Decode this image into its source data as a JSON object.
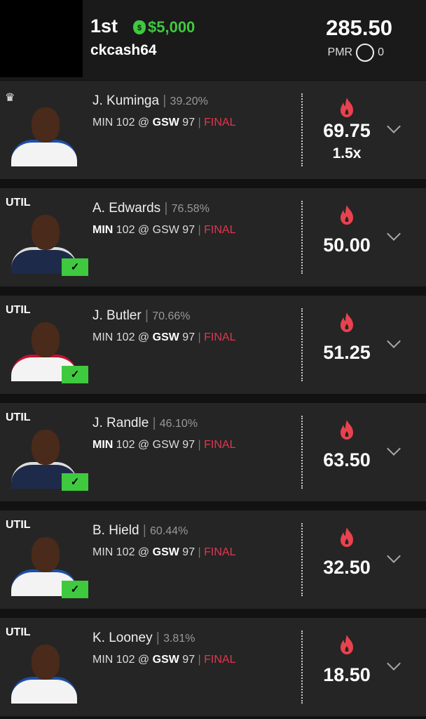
{
  "header": {
    "rank": "1st",
    "prize": "$5,000",
    "username": "ckcash64",
    "total": "285.50",
    "pmr_label": "PMR",
    "pmr_value": "0"
  },
  "colors": {
    "prize": "#3fc93f",
    "final": "#e0364e",
    "check": "#3fc93f"
  },
  "players": [
    {
      "slot": "crown",
      "name": "J. Kuminga",
      "pct": "39.20%",
      "away": "MIN",
      "away_score": "102",
      "home": "GSW",
      "home_score": "97",
      "bold": "home",
      "status": "FINAL",
      "score": "69.75",
      "mult": "1.5x",
      "checked": false,
      "jersey": "#f3f3f3",
      "trim": "#1d4fa8"
    },
    {
      "slot": "UTIL",
      "name": "A. Edwards",
      "pct": "76.58%",
      "away": "MIN",
      "away_score": "102",
      "home": "GSW",
      "home_score": "97",
      "bold": "away",
      "status": "FINAL",
      "score": "50.00",
      "checked": true,
      "jersey": "#1e2a4a",
      "trim": "#ddd"
    },
    {
      "slot": "UTIL",
      "name": "J. Butler",
      "pct": "70.66%",
      "away": "MIN",
      "away_score": "102",
      "home": "GSW",
      "home_score": "97",
      "bold": "home",
      "status": "FINAL",
      "score": "51.25",
      "checked": true,
      "jersey": "#f3f3f3",
      "trim": "#c8102e"
    },
    {
      "slot": "UTIL",
      "name": "J. Randle",
      "pct": "46.10%",
      "away": "MIN",
      "away_score": "102",
      "home": "GSW",
      "home_score": "97",
      "bold": "away",
      "status": "FINAL",
      "score": "63.50",
      "checked": true,
      "jersey": "#1e2a4a",
      "trim": "#ddd"
    },
    {
      "slot": "UTIL",
      "name": "B. Hield",
      "pct": "60.44%",
      "away": "MIN",
      "away_score": "102",
      "home": "GSW",
      "home_score": "97",
      "bold": "home",
      "status": "FINAL",
      "score": "32.50",
      "checked": true,
      "jersey": "#f3f3f3",
      "trim": "#1d4fa8"
    },
    {
      "slot": "UTIL",
      "name": "K. Looney",
      "pct": "3.81%",
      "away": "MIN",
      "away_score": "102",
      "home": "GSW",
      "home_score": "97",
      "bold": "home",
      "status": "FINAL",
      "score": "18.50",
      "checked": false,
      "jersey": "#f3f3f3",
      "trim": "#1d4fa8"
    }
  ]
}
